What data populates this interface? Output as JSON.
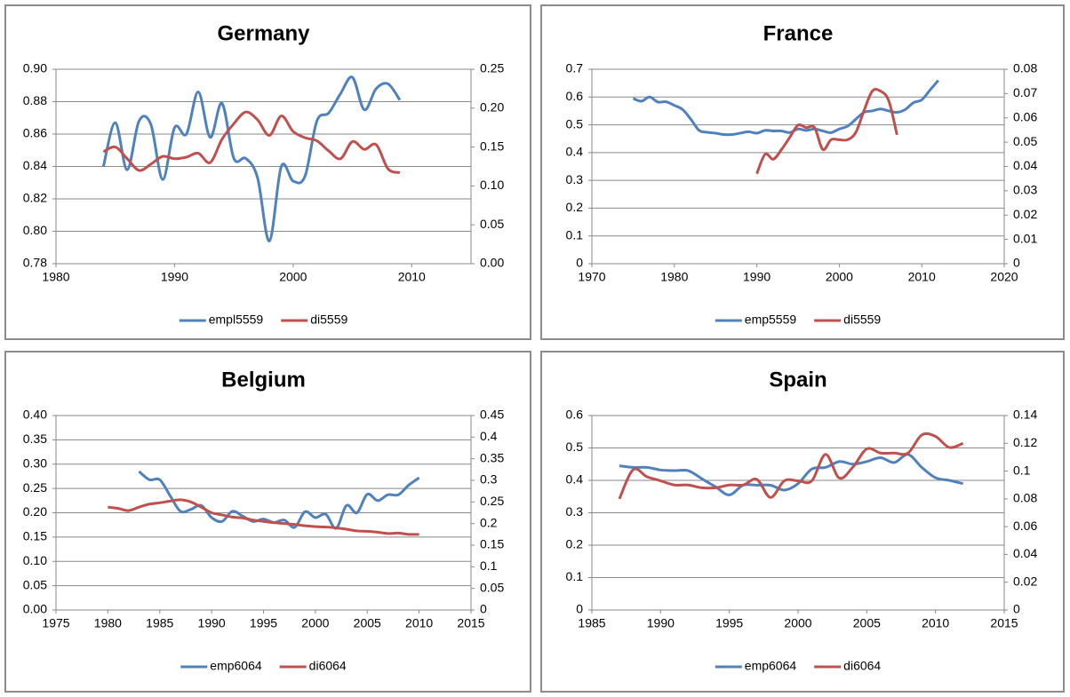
{
  "chart_data": [
    {
      "type": "line",
      "title": "Germany",
      "xlim": [
        1980,
        2015
      ],
      "xticks": [
        1980,
        1990,
        2000,
        2010
      ],
      "ylim": [
        0.78,
        0.9
      ],
      "yticks": [
        0.78,
        {
          "value": 0.8,
          "label": "0.80"
        },
        0.82,
        0.84,
        0.86,
        0.88,
        {
          "value": 0.9,
          "label": "0.90"
        }
      ],
      "y2lim": [
        0,
        0.25
      ],
      "y2ticks": [
        {
          "value": 0,
          "label": "0.00"
        },
        0.05,
        {
          "value": 0.1,
          "label": "0.10"
        },
        0.15,
        {
          "value": 0.2,
          "label": "0.20"
        },
        0.25
      ],
      "grid": true,
      "legend": "bottom",
      "series": [
        {
          "name": "empl5559",
          "color": "#4f81bd",
          "x": [
            1984,
            1985,
            1986,
            1987,
            1988,
            1989,
            1990,
            1991,
            1992,
            1993,
            1994,
            1995,
            1996,
            1997,
            1998,
            1999,
            2000,
            2001,
            2002,
            2003,
            2004,
            2005,
            2006,
            2007,
            2008,
            2009
          ],
          "values": [
            0.84,
            0.867,
            0.838,
            0.868,
            0.866,
            0.832,
            0.864,
            0.86,
            0.886,
            0.858,
            0.879,
            0.845,
            0.845,
            0.833,
            0.794,
            0.84,
            0.831,
            0.834,
            0.868,
            0.873,
            0.885,
            0.895,
            0.875,
            0.888,
            0.891,
            0.881
          ]
        },
        {
          "name": "di5559",
          "color": "#c0504d",
          "axis": "y2",
          "x": [
            1984,
            1985,
            1986,
            1987,
            1988,
            1989,
            1990,
            1991,
            1992,
            1993,
            1994,
            1995,
            1996,
            1997,
            1998,
            1999,
            2000,
            2001,
            2002,
            2003,
            2004,
            2005,
            2006,
            2007,
            2008,
            2009
          ],
          "values": [
            0.144,
            0.15,
            0.135,
            0.12,
            0.128,
            0.138,
            0.135,
            0.137,
            0.142,
            0.13,
            0.16,
            0.18,
            0.195,
            0.185,
            0.165,
            0.19,
            0.17,
            0.162,
            0.158,
            0.145,
            0.135,
            0.157,
            0.147,
            0.153,
            0.122,
            0.117
          ]
        }
      ]
    },
    {
      "type": "line",
      "title": "France",
      "xlim": [
        1970,
        2020
      ],
      "xticks": [
        1970,
        1980,
        1990,
        2000,
        2010,
        2020
      ],
      "ylim": [
        0,
        0.7
      ],
      "yticks": [
        0,
        0.1,
        0.2,
        0.3,
        0.4,
        0.5,
        0.6,
        0.7
      ],
      "y2lim": [
        0,
        0.08
      ],
      "y2ticks": [
        0,
        0.01,
        0.02,
        0.03,
        0.04,
        0.05,
        0.06,
        0.07,
        0.08
      ],
      "grid": true,
      "legend": "bottom",
      "series": [
        {
          "name": "emp5559",
          "color": "#4f81bd",
          "x": [
            1975,
            1976,
            1977,
            1978,
            1979,
            1980,
            1981,
            1982,
            1983,
            1984,
            1985,
            1986,
            1987,
            1988,
            1989,
            1990,
            1991,
            1992,
            1993,
            1994,
            1995,
            1996,
            1997,
            1998,
            1999,
            2000,
            2001,
            2002,
            2003,
            2004,
            2005,
            2006,
            2007,
            2008,
            2009,
            2010,
            2011,
            2012
          ],
          "values": [
            0.595,
            0.585,
            0.6,
            0.582,
            0.583,
            0.57,
            0.555,
            0.52,
            0.48,
            0.473,
            0.47,
            0.465,
            0.465,
            0.47,
            0.475,
            0.47,
            0.48,
            0.478,
            0.478,
            0.472,
            0.485,
            0.48,
            0.485,
            0.478,
            0.472,
            0.485,
            0.495,
            0.52,
            0.545,
            0.55,
            0.557,
            0.55,
            0.545,
            0.555,
            0.58,
            0.59,
            0.625,
            0.66
          ]
        },
        {
          "name": "di5559",
          "color": "#c0504d",
          "axis": "y2",
          "x": [
            1990,
            1991,
            1992,
            1993,
            1994,
            1995,
            1996,
            1997,
            1998,
            1999,
            2000,
            2001,
            2002,
            2003,
            2004,
            2005,
            2006,
            2007
          ],
          "values": [
            0.037,
            0.045,
            0.043,
            0.047,
            0.052,
            0.057,
            0.056,
            0.056,
            0.047,
            0.051,
            0.051,
            0.051,
            0.054,
            0.063,
            0.071,
            0.071,
            0.067,
            0.053
          ]
        }
      ]
    },
    {
      "type": "line",
      "title": "Belgium",
      "xlim": [
        1975,
        2015
      ],
      "xticks": [
        1975,
        1980,
        1985,
        1990,
        1995,
        2000,
        2005,
        2010,
        2015
      ],
      "ylim": [
        0,
        0.4
      ],
      "yticks": [
        {
          "value": 0,
          "label": "0.00"
        },
        {
          "value": 0.05,
          "label": "0.05"
        },
        {
          "value": 0.1,
          "label": "0.10"
        },
        0.15,
        {
          "value": 0.2,
          "label": "0.20"
        },
        0.25,
        {
          "value": 0.3,
          "label": "0.30"
        },
        0.35,
        {
          "value": 0.4,
          "label": "0.40"
        }
      ],
      "y2lim": [
        0,
        0.45
      ],
      "y2ticks": [
        0,
        0.05,
        0.1,
        0.15,
        0.2,
        0.25,
        0.3,
        0.35,
        0.4,
        0.45
      ],
      "grid": true,
      "legend": "bottom",
      "series": [
        {
          "name": "emp6064",
          "color": "#4f81bd",
          "x": [
            1983,
            1984,
            1985,
            1986,
            1987,
            1988,
            1989,
            1990,
            1991,
            1992,
            1993,
            1994,
            1995,
            1996,
            1997,
            1998,
            1999,
            2000,
            2001,
            2002,
            2003,
            2004,
            2005,
            2006,
            2007,
            2008,
            2009,
            2010
          ],
          "values": [
            0.285,
            0.268,
            0.268,
            0.235,
            0.203,
            0.207,
            0.215,
            0.19,
            0.182,
            0.203,
            0.193,
            0.182,
            0.187,
            0.18,
            0.185,
            0.17,
            0.202,
            0.19,
            0.197,
            0.168,
            0.215,
            0.2,
            0.238,
            0.225,
            0.237,
            0.237,
            0.257,
            0.272
          ]
        },
        {
          "name": "di6064",
          "color": "#c0504d",
          "axis": "y2",
          "x": [
            1980,
            1981,
            1982,
            1983,
            1984,
            1985,
            1986,
            1987,
            1988,
            1989,
            1990,
            1991,
            1992,
            1993,
            1994,
            1995,
            1996,
            1997,
            1998,
            1999,
            2000,
            2001,
            2002,
            2003,
            2004,
            2005,
            2006,
            2007,
            2008,
            2009,
            2010
          ],
          "values": [
            0.238,
            0.235,
            0.23,
            0.238,
            0.245,
            0.248,
            0.252,
            0.255,
            0.25,
            0.238,
            0.225,
            0.22,
            0.215,
            0.213,
            0.208,
            0.205,
            0.202,
            0.2,
            0.198,
            0.195,
            0.193,
            0.192,
            0.19,
            0.187,
            0.183,
            0.182,
            0.18,
            0.177,
            0.178,
            0.175,
            0.175
          ]
        }
      ]
    },
    {
      "type": "line",
      "title": "Spain",
      "xlim": [
        1985,
        2015
      ],
      "xticks": [
        1985,
        1990,
        1995,
        2000,
        2005,
        2010,
        2015
      ],
      "ylim": [
        0,
        0.6
      ],
      "yticks": [
        0,
        0.1,
        0.2,
        0.3,
        0.4,
        0.5,
        0.6
      ],
      "y2lim": [
        0,
        0.14
      ],
      "y2ticks": [
        0,
        0.02,
        0.04,
        0.06,
        0.08,
        0.1,
        0.12,
        0.14
      ],
      "grid": true,
      "legend": "bottom",
      "series": [
        {
          "name": "emp6064",
          "color": "#4f81bd",
          "x": [
            1987,
            1988,
            1989,
            1990,
            1991,
            1992,
            1993,
            1994,
            1995,
            1996,
            1997,
            1998,
            1999,
            2000,
            2001,
            2002,
            2003,
            2004,
            2005,
            2006,
            2007,
            2008,
            2009,
            2010,
            2011,
            2012
          ],
          "values": [
            0.445,
            0.44,
            0.44,
            0.432,
            0.43,
            0.43,
            0.405,
            0.38,
            0.355,
            0.385,
            0.385,
            0.385,
            0.37,
            0.39,
            0.435,
            0.44,
            0.458,
            0.45,
            0.458,
            0.47,
            0.455,
            0.48,
            0.44,
            0.408,
            0.4,
            0.39
          ]
        },
        {
          "name": "di6064",
          "color": "#c0504d",
          "axis": "y2",
          "x": [
            1987,
            1988,
            1989,
            1990,
            1991,
            1992,
            1993,
            1994,
            1995,
            1996,
            1997,
            1998,
            1999,
            2000,
            2001,
            2002,
            2003,
            2004,
            2005,
            2006,
            2007,
            2008,
            2009,
            2010,
            2011,
            2012
          ],
          "values": [
            0.08,
            0.101,
            0.096,
            0.093,
            0.09,
            0.09,
            0.088,
            0.088,
            0.09,
            0.09,
            0.094,
            0.081,
            0.093,
            0.093,
            0.093,
            0.112,
            0.095,
            0.103,
            0.116,
            0.113,
            0.113,
            0.113,
            0.126,
            0.125,
            0.117,
            0.12
          ]
        }
      ]
    }
  ]
}
